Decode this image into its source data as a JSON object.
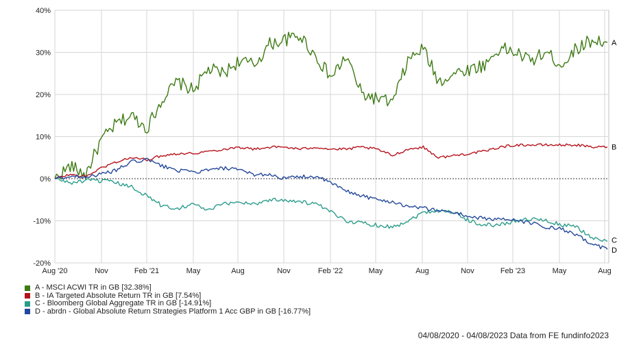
{
  "chart_data": {
    "type": "line",
    "x_tick_labels": [
      "Aug '20",
      "Nov",
      "Feb '21",
      "May",
      "Aug",
      "Nov",
      "Feb '22",
      "May",
      "Aug",
      "Nov",
      "Feb '23",
      "May",
      "Aug"
    ],
    "y_tick_labels": [
      "40%",
      "30%",
      "20%",
      "10%",
      "0%",
      "-10%",
      "-20%"
    ],
    "ylim": [
      -20,
      40
    ],
    "grid": true,
    "colors": {
      "A": "#3d7a13",
      "B": "#b5121b",
      "C": "#2a9c8a",
      "D": "#23479a"
    },
    "series": [
      {
        "key": "A",
        "name": "A - MSCI ACWI TR in GB [32.38%]",
        "end_label": "A",
        "x": [
          "2020-08",
          "2020-09",
          "2020-10",
          "2020-11",
          "2020-12",
          "2021-01",
          "2021-02",
          "2021-03",
          "2021-04",
          "2021-05",
          "2021-06",
          "2021-07",
          "2021-08",
          "2021-09",
          "2021-10",
          "2021-11",
          "2021-12",
          "2022-01",
          "2022-02",
          "2022-03",
          "2022-04",
          "2022-05",
          "2022-06",
          "2022-07",
          "2022-08",
          "2022-09",
          "2022-10",
          "2022-11",
          "2022-12",
          "2023-01",
          "2023-02",
          "2023-03",
          "2023-04",
          "2023-05",
          "2023-06",
          "2023-07",
          "2023-08"
        ],
        "values": [
          0,
          3,
          1,
          9,
          13,
          15,
          12,
          19,
          23,
          21,
          26,
          25,
          28,
          27,
          32,
          33,
          34,
          29,
          24,
          29,
          20,
          19,
          18,
          28,
          31,
          23,
          25,
          26,
          27,
          31,
          30,
          28,
          30,
          27,
          31,
          33,
          32.38
        ]
      },
      {
        "key": "B",
        "name": "B - IA Targeted Absolute Return TR in GB [7.54%]",
        "end_label": "B",
        "x": [
          "2020-08",
          "2020-09",
          "2020-10",
          "2020-11",
          "2020-12",
          "2021-01",
          "2021-02",
          "2021-03",
          "2021-04",
          "2021-05",
          "2021-06",
          "2021-07",
          "2021-08",
          "2021-09",
          "2021-10",
          "2021-11",
          "2021-12",
          "2022-01",
          "2022-02",
          "2022-03",
          "2022-04",
          "2022-05",
          "2022-06",
          "2022-07",
          "2022-08",
          "2022-09",
          "2022-10",
          "2022-11",
          "2022-12",
          "2023-01",
          "2023-02",
          "2023-03",
          "2023-04",
          "2023-05",
          "2023-06",
          "2023-07",
          "2023-08"
        ],
        "values": [
          0,
          1,
          0.5,
          2.5,
          4,
          5,
          4.5,
          5.5,
          6,
          6,
          6.5,
          7,
          7.5,
          7,
          7.5,
          7.5,
          7,
          7.5,
          7,
          7,
          7.5,
          7,
          5.5,
          7,
          7.5,
          5,
          5.5,
          6,
          6.5,
          7.5,
          8,
          8,
          8,
          8,
          8,
          7.5,
          7.54
        ]
      },
      {
        "key": "C",
        "name": "C - Bloomberg Global Aggregate TR in GB [-14.91%]",
        "end_label": "C",
        "x": [
          "2020-08",
          "2020-09",
          "2020-10",
          "2020-11",
          "2020-12",
          "2021-01",
          "2021-02",
          "2021-03",
          "2021-04",
          "2021-05",
          "2021-06",
          "2021-07",
          "2021-08",
          "2021-09",
          "2021-10",
          "2021-11",
          "2021-12",
          "2022-01",
          "2022-02",
          "2022-03",
          "2022-04",
          "2022-05",
          "2022-06",
          "2022-07",
          "2022-08",
          "2022-09",
          "2022-10",
          "2022-11",
          "2022-12",
          "2023-01",
          "2023-02",
          "2023-03",
          "2023-04",
          "2023-05",
          "2023-06",
          "2023-07",
          "2023-08"
        ],
        "values": [
          0,
          -1,
          -0.5,
          -0.5,
          -1,
          -2,
          -4,
          -6.5,
          -7,
          -6,
          -7.5,
          -6,
          -5.5,
          -6,
          -5,
          -5,
          -5.5,
          -6,
          -8,
          -10,
          -10.5,
          -11,
          -11.5,
          -10,
          -8,
          -7.5,
          -8,
          -10,
          -11,
          -11,
          -10,
          -9.5,
          -10,
          -11,
          -11.5,
          -14,
          -14.91
        ]
      },
      {
        "key": "D",
        "name": "D - abrdn - Global Absolute Return Strategies Platform 1 Acc GBP in GB [-16.77%]",
        "end_label": "D",
        "x": [
          "2020-08",
          "2020-09",
          "2020-10",
          "2020-11",
          "2020-12",
          "2021-01",
          "2021-02",
          "2021-03",
          "2021-04",
          "2021-05",
          "2021-06",
          "2021-07",
          "2021-08",
          "2021-09",
          "2021-10",
          "2021-11",
          "2021-12",
          "2022-01",
          "2022-02",
          "2022-03",
          "2022-04",
          "2022-05",
          "2022-06",
          "2022-07",
          "2022-08",
          "2022-09",
          "2022-10",
          "2022-11",
          "2022-12",
          "2023-01",
          "2023-02",
          "2023-03",
          "2023-04",
          "2023-05",
          "2023-06",
          "2023-07",
          "2023-08"
        ],
        "values": [
          0,
          0.5,
          0.5,
          1,
          2,
          4,
          4.5,
          3,
          2,
          1.5,
          2,
          2.5,
          2,
          1,
          1,
          0,
          0.5,
          0.5,
          -1,
          -3,
          -4,
          -5,
          -5.5,
          -6.5,
          -7,
          -7.5,
          -8,
          -9,
          -9.5,
          -9.5,
          -10,
          -10.5,
          -11.5,
          -12,
          -13.5,
          -15.5,
          -16.77
        ]
      }
    ]
  },
  "footer": {
    "text": "04/08/2020 - 04/08/2023 Data from FE fundinfo2023"
  }
}
